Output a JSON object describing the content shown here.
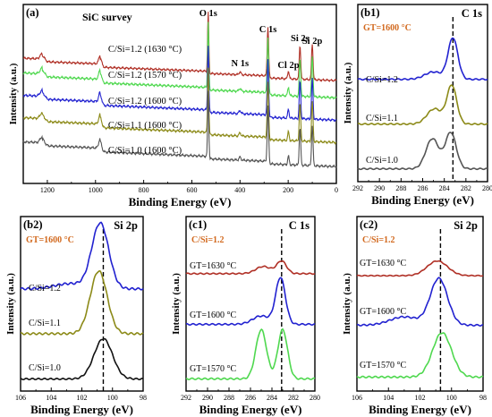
{
  "chart_data": [
    {
      "id": "a",
      "type": "line",
      "panel_label": "(a)",
      "title": "SiC survey",
      "xlabel": "Binding Energy (eV)",
      "ylabel": "Intensity (a.u.)",
      "xlim": [
        1300,
        0
      ],
      "x_ticks": [
        "1200",
        "1000",
        "800",
        "600",
        "400",
        "200",
        "0"
      ],
      "peak_labels": [
        {
          "text": "O 1s",
          "x": 532
        },
        {
          "text": "N 1s",
          "x": 400
        },
        {
          "text": "C 1s",
          "x": 284
        },
        {
          "text": "Cl 2p",
          "x": 199
        },
        {
          "text": "Si 2s",
          "x": 151
        },
        {
          "text": "Si 2p",
          "x": 100
        }
      ],
      "series": [
        {
          "name": "C/Si=1.2 (1630 °C)",
          "color": "#b03026"
        },
        {
          "name": "C/Si=1.2 (1570 °C)",
          "color": "#4fd84f"
        },
        {
          "name": "C/Si=1.2 (1600 °C)",
          "color": "#2222d0"
        },
        {
          "name": "C/Si=1.1 (1600 °C)",
          "color": "#8c8a18"
        },
        {
          "name": "C/Si=1.0 (1600 °C)",
          "color": "#555555"
        }
      ],
      "peaks": [
        {
          "x": 1220,
          "h": 0.25,
          "w": 9
        },
        {
          "x": 980,
          "h": 0.4,
          "w": 6
        },
        {
          "x": 532,
          "h": 2.6,
          "w": 2.5
        },
        {
          "x": 400,
          "h": 0.12,
          "w": 4
        },
        {
          "x": 284,
          "h": 2.2,
          "w": 3
        },
        {
          "x": 199,
          "h": 0.35,
          "w": 3
        },
        {
          "x": 151,
          "h": 1.5,
          "w": 3
        },
        {
          "x": 100,
          "h": 1.6,
          "w": 3
        }
      ]
    },
    {
      "id": "b1",
      "type": "line",
      "panel_label": "(b1)",
      "title": "C 1s",
      "annotation": "GT=1600 °C",
      "xlabel": "Binding Energy (eV)",
      "ylabel": "Intensity (a.u.)",
      "xlim": [
        292,
        280
      ],
      "x_ticks": [
        "292",
        "290",
        "288",
        "286",
        "284",
        "282",
        "280"
      ],
      "reference_x": 283.2,
      "series": [
        {
          "name": "C/Si=1.2",
          "color": "#2222d0",
          "peaks": [
            {
              "x": 283.2,
              "h": 1.0,
              "w": 0.45
            },
            {
              "x": 285.0,
              "h": 0.18,
              "w": 0.8
            }
          ]
        },
        {
          "name": "C/Si=1.1",
          "color": "#8c8a18",
          "peaks": [
            {
              "x": 283.3,
              "h": 0.95,
              "w": 0.45
            },
            {
              "x": 284.9,
              "h": 0.38,
              "w": 0.7
            }
          ]
        },
        {
          "name": "C/Si=1.0",
          "color": "#555555",
          "peaks": [
            {
              "x": 283.4,
              "h": 0.9,
              "w": 0.5
            },
            {
              "x": 285.1,
              "h": 0.75,
              "w": 0.6
            }
          ]
        }
      ]
    },
    {
      "id": "b2",
      "type": "line",
      "panel_label": "(b2)",
      "title": "Si 2p",
      "annotation": "GT=1600 °C",
      "xlabel": "Binding Energy (eV)",
      "ylabel": "Intensity (a.u.)",
      "xlim": [
        106,
        98
      ],
      "x_ticks": [
        "106",
        "104",
        "102",
        "100",
        "98"
      ],
      "reference_x": 100.6,
      "series": [
        {
          "name": "C/Si=1.2",
          "color": "#2222d0",
          "peaks": [
            {
              "x": 100.8,
              "h": 1.0,
              "w": 0.55
            },
            {
              "x": 102.8,
              "h": 0.08,
              "w": 1.0
            }
          ]
        },
        {
          "name": "C/Si=1.1",
          "color": "#8c8a18",
          "peaks": [
            {
              "x": 100.9,
              "h": 1.0,
              "w": 0.55
            }
          ]
        },
        {
          "name": "C/Si=1.0",
          "color": "#111111",
          "peaks": [
            {
              "x": 100.6,
              "h": 0.9,
              "w": 0.6
            }
          ]
        }
      ]
    },
    {
      "id": "c1",
      "type": "line",
      "panel_label": "(c1)",
      "title": "C 1s",
      "annotation": "C/Si=1.2",
      "xlabel": "Binding Energy (eV)",
      "ylabel": "Intensity (a.u.)",
      "xlim": [
        292,
        280
      ],
      "x_ticks": [
        "292",
        "290",
        "288",
        "286",
        "284",
        "282",
        "280"
      ],
      "reference_x": 283.1,
      "series": [
        {
          "name": "GT=1630 °C",
          "color": "#b03026",
          "peaks": [
            {
              "x": 283.1,
              "h": 0.35,
              "w": 0.45
            },
            {
              "x": 284.8,
              "h": 0.2,
              "w": 0.7
            }
          ]
        },
        {
          "name": "GT=1600 °C",
          "color": "#2222d0",
          "peaks": [
            {
              "x": 283.2,
              "h": 1.0,
              "w": 0.45
            },
            {
              "x": 285.0,
              "h": 0.18,
              "w": 0.8
            }
          ]
        },
        {
          "name": "GT=1570 °C",
          "color": "#4fd84f",
          "peaks": [
            {
              "x": 283.0,
              "h": 1.0,
              "w": 0.45
            },
            {
              "x": 285.0,
              "h": 1.0,
              "w": 0.5
            }
          ]
        }
      ]
    },
    {
      "id": "c2",
      "type": "line",
      "panel_label": "(c2)",
      "title": "Si 2p",
      "annotation": "C/Si=1.2",
      "xlabel": "Binding Energy (eV)",
      "ylabel": "Intensity (a.u.)",
      "xlim": [
        106,
        98
      ],
      "x_ticks": [
        "106",
        "104",
        "102",
        "100",
        "98"
      ],
      "reference_x": 100.7,
      "series": [
        {
          "name": "GT=1630 °C",
          "color": "#b03026",
          "peaks": [
            {
              "x": 100.9,
              "h": 0.55,
              "w": 0.65
            }
          ]
        },
        {
          "name": "GT=1600 °C",
          "color": "#2222d0",
          "peaks": [
            {
              "x": 100.8,
              "h": 1.0,
              "w": 0.55
            },
            {
              "x": 103.0,
              "h": 0.18,
              "w": 0.9
            }
          ]
        },
        {
          "name": "GT=1570 °C",
          "color": "#4fd84f",
          "peaks": [
            {
              "x": 100.6,
              "h": 0.9,
              "w": 0.6
            }
          ]
        }
      ]
    }
  ]
}
